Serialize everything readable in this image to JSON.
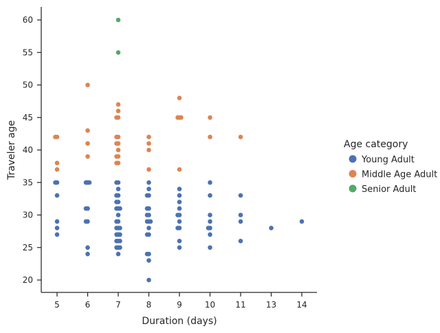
{
  "chart_data": {
    "type": "scatter",
    "title": "",
    "xlabel": "Duration (days)",
    "ylabel": "Traveler age",
    "categories": [
      "5",
      "6",
      "7",
      "8",
      "9",
      "10",
      "11",
      "13",
      "14"
    ],
    "y_ticks": [
      20,
      25,
      30,
      35,
      40,
      45,
      50,
      55,
      60
    ],
    "ylim": [
      18,
      62
    ],
    "grid": false,
    "legend": {
      "title": "Age category",
      "position": "right"
    },
    "series": [
      {
        "name": "Young Adult",
        "color": "#4c72b0",
        "points": [
          [
            "5",
            35
          ],
          [
            "5",
            35
          ],
          [
            "5",
            33
          ],
          [
            "5",
            29
          ],
          [
            "5",
            28
          ],
          [
            "5",
            27
          ],
          [
            "6",
            35
          ],
          [
            "6",
            35
          ],
          [
            "6",
            35
          ],
          [
            "6",
            35
          ],
          [
            "6",
            31
          ],
          [
            "6",
            31
          ],
          [
            "6",
            29
          ],
          [
            "6",
            29
          ],
          [
            "6",
            25
          ],
          [
            "6",
            24
          ],
          [
            "7",
            35
          ],
          [
            "7",
            35
          ],
          [
            "7",
            34
          ],
          [
            "7",
            33
          ],
          [
            "7",
            33
          ],
          [
            "7",
            32
          ],
          [
            "7",
            32
          ],
          [
            "7",
            31
          ],
          [
            "7",
            31
          ],
          [
            "7",
            31
          ],
          [
            "7",
            30
          ],
          [
            "7",
            29
          ],
          [
            "7",
            29
          ],
          [
            "7",
            28
          ],
          [
            "7",
            28
          ],
          [
            "7",
            28
          ],
          [
            "7",
            27
          ],
          [
            "7",
            27
          ],
          [
            "7",
            27
          ],
          [
            "7",
            27
          ],
          [
            "7",
            27
          ],
          [
            "7",
            26
          ],
          [
            "7",
            26
          ],
          [
            "7",
            26
          ],
          [
            "7",
            25
          ],
          [
            "7",
            25
          ],
          [
            "7",
            25
          ],
          [
            "7",
            24
          ],
          [
            "8",
            35
          ],
          [
            "8",
            34
          ],
          [
            "8",
            33
          ],
          [
            "8",
            33
          ],
          [
            "8",
            31
          ],
          [
            "8",
            31
          ],
          [
            "8",
            30
          ],
          [
            "8",
            30
          ],
          [
            "8",
            29
          ],
          [
            "8",
            29
          ],
          [
            "8",
            29
          ],
          [
            "8",
            28
          ],
          [
            "8",
            27
          ],
          [
            "8",
            27
          ],
          [
            "8",
            24
          ],
          [
            "8",
            24
          ],
          [
            "8",
            23
          ],
          [
            "8",
            20
          ],
          [
            "9",
            34
          ],
          [
            "9",
            33
          ],
          [
            "9",
            32
          ],
          [
            "9",
            31
          ],
          [
            "9",
            30
          ],
          [
            "9",
            30
          ],
          [
            "9",
            29
          ],
          [
            "9",
            28
          ],
          [
            "9",
            28
          ],
          [
            "9",
            26
          ],
          [
            "9",
            25
          ],
          [
            "10",
            35
          ],
          [
            "10",
            33
          ],
          [
            "10",
            30
          ],
          [
            "10",
            29
          ],
          [
            "10",
            28
          ],
          [
            "10",
            28
          ],
          [
            "10",
            27
          ],
          [
            "10",
            25
          ],
          [
            "11",
            33
          ],
          [
            "11",
            30
          ],
          [
            "11",
            29
          ],
          [
            "11",
            26
          ],
          [
            "13",
            28
          ],
          [
            "14",
            29
          ]
        ]
      },
      {
        "name": "Middle Age Adult",
        "color": "#dd8452",
        "points": [
          [
            "5",
            42
          ],
          [
            "5",
            42
          ],
          [
            "5",
            38
          ],
          [
            "5",
            37
          ],
          [
            "6",
            50
          ],
          [
            "6",
            43
          ],
          [
            "6",
            41
          ],
          [
            "6",
            39
          ],
          [
            "7",
            47
          ],
          [
            "7",
            46
          ],
          [
            "7",
            45
          ],
          [
            "7",
            45
          ],
          [
            "7",
            42
          ],
          [
            "7",
            42
          ],
          [
            "7",
            41
          ],
          [
            "7",
            41
          ],
          [
            "7",
            40
          ],
          [
            "7",
            39
          ],
          [
            "7",
            39
          ],
          [
            "7",
            38
          ],
          [
            "7",
            38
          ],
          [
            "8",
            42
          ],
          [
            "8",
            41
          ],
          [
            "8",
            40
          ],
          [
            "8",
            37
          ],
          [
            "9",
            48
          ],
          [
            "9",
            45
          ],
          [
            "9",
            45
          ],
          [
            "9",
            45
          ],
          [
            "9",
            37
          ],
          [
            "10",
            45
          ],
          [
            "10",
            42
          ],
          [
            "11",
            42
          ]
        ]
      },
      {
        "name": "Senior Adult",
        "color": "#55a868",
        "points": [
          [
            "7",
            60
          ],
          [
            "7",
            55
          ]
        ]
      }
    ]
  }
}
